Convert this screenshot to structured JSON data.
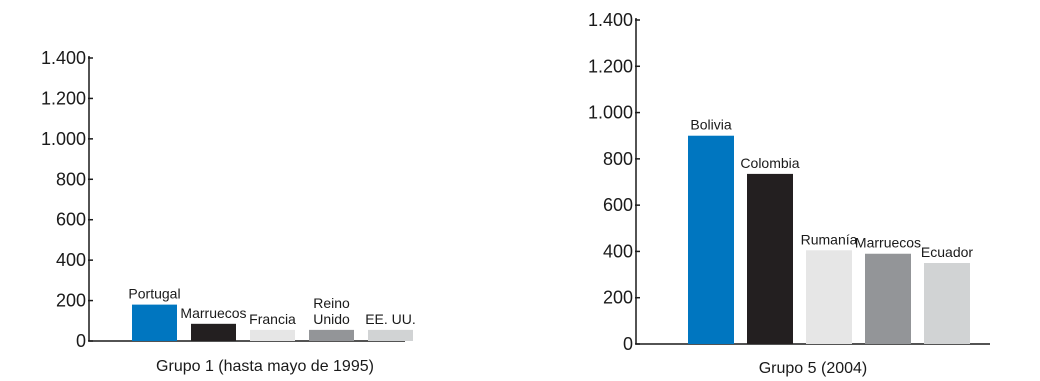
{
  "chart_data": [
    {
      "type": "bar",
      "title": "",
      "xlabel": "Grupo 1 (hasta mayo de 1995)",
      "ylabel": "",
      "ylim": [
        0,
        1400
      ],
      "yticks": [
        0,
        200,
        400,
        600,
        800,
        1000,
        1200,
        1400
      ],
      "ytick_labels": [
        "0",
        "200",
        "400",
        "600",
        "800",
        "1.000",
        "1.200",
        "1.400"
      ],
      "categories": [
        "Portugal",
        "Marruecos",
        "Francia",
        "Reino Unido",
        "EE. UU."
      ],
      "values": [
        180,
        85,
        55,
        55,
        55
      ],
      "bar_colors": [
        "#0076c0",
        "#231f20",
        "#e6e6e6",
        "#939598",
        "#d1d3d4"
      ],
      "grid": false,
      "legend": "none"
    },
    {
      "type": "bar",
      "title": "",
      "xlabel": "Grupo 5 (2004)",
      "ylabel": "",
      "ylim": [
        0,
        1400
      ],
      "yticks": [
        0,
        200,
        400,
        600,
        800,
        1000,
        1200,
        1400
      ],
      "ytick_labels": [
        "0",
        "200",
        "400",
        "600",
        "800",
        "1.000",
        "1.200",
        "1.400"
      ],
      "categories": [
        "Bolivia",
        "Colombia",
        "Rumanía",
        "Marruecos",
        "Ecuador"
      ],
      "values": [
        900,
        735,
        405,
        390,
        350
      ],
      "bar_colors": [
        "#0076c0",
        "#231f20",
        "#e6e6e6",
        "#939598",
        "#d1d3d4"
      ],
      "grid": false,
      "legend": "none"
    }
  ]
}
